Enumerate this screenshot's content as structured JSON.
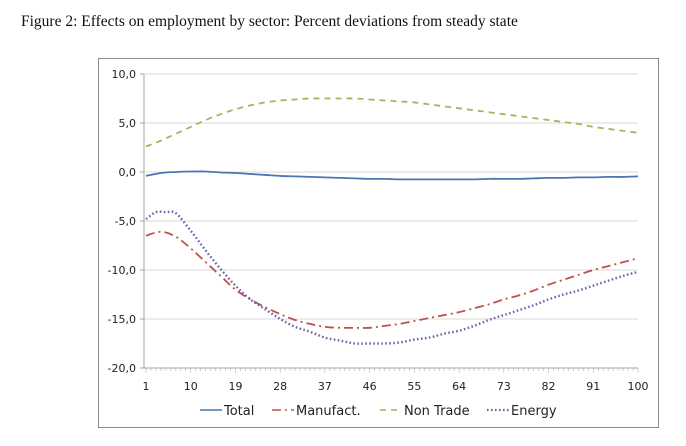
{
  "figure": {
    "title": "Figure 2: Effects on employment by sector: Percent deviations from steady state"
  },
  "chart_data": {
    "type": "line",
    "title": "Figure 2: Effects on employment by sector: Percent deviations from steady state",
    "xlabel": "",
    "ylabel": "",
    "xlim": [
      1,
      100
    ],
    "ylim": [
      -20,
      10
    ],
    "x_ticks": [
      1,
      10,
      19,
      28,
      37,
      46,
      55,
      64,
      73,
      82,
      91,
      100
    ],
    "x_tick_labels": [
      "1",
      "10",
      "19",
      "28",
      "37",
      "46",
      "55",
      "64",
      "73",
      "82",
      "91",
      "100"
    ],
    "y_ticks": [
      10,
      5,
      0,
      -5,
      -10,
      -15,
      -20
    ],
    "y_tick_labels": [
      "10,0",
      "5,0",
      "0,0",
      "-5,0",
      "-10,0",
      "-15,0",
      "-20,0"
    ],
    "grid": true,
    "legend_position": "bottom",
    "series": [
      {
        "name": "Total",
        "color": "#4a76b3",
        "style": "solid",
        "x": [
          1,
          4,
          7,
          10,
          13,
          16,
          19,
          22,
          25,
          28,
          31,
          34,
          37,
          40,
          43,
          46,
          49,
          52,
          55,
          58,
          61,
          64,
          67,
          70,
          73,
          76,
          79,
          82,
          85,
          88,
          91,
          94,
          97,
          100
        ],
        "values": [
          -0.4,
          -0.1,
          0.0,
          0.05,
          0.05,
          -0.05,
          -0.1,
          -0.2,
          -0.3,
          -0.4,
          -0.45,
          -0.5,
          -0.55,
          -0.6,
          -0.65,
          -0.7,
          -0.7,
          -0.75,
          -0.75,
          -0.75,
          -0.75,
          -0.75,
          -0.75,
          -0.7,
          -0.7,
          -0.7,
          -0.65,
          -0.6,
          -0.6,
          -0.55,
          -0.55,
          -0.5,
          -0.5,
          -0.45
        ]
      },
      {
        "name": "Manufact.",
        "color": "#c0504d",
        "style": "dash-dot",
        "x": [
          1,
          4,
          7,
          10,
          13,
          16,
          19,
          22,
          25,
          28,
          31,
          34,
          37,
          40,
          43,
          46,
          49,
          52,
          55,
          58,
          61,
          64,
          67,
          70,
          73,
          76,
          79,
          82,
          85,
          88,
          91,
          94,
          97,
          100
        ],
        "values": [
          -6.5,
          -6.1,
          -6.6,
          -7.8,
          -9.2,
          -10.6,
          -12.0,
          -13.0,
          -13.8,
          -14.5,
          -15.1,
          -15.5,
          -15.8,
          -15.9,
          -15.9,
          -15.9,
          -15.7,
          -15.5,
          -15.2,
          -14.9,
          -14.6,
          -14.3,
          -13.9,
          -13.5,
          -13.0,
          -12.6,
          -12.1,
          -11.5,
          -11.0,
          -10.5,
          -10.0,
          -9.6,
          -9.2,
          -8.8
        ]
      },
      {
        "name": "Non Trade",
        "color": "#9bbb59",
        "style": "dashed",
        "x": [
          1,
          4,
          7,
          10,
          13,
          16,
          19,
          22,
          25,
          28,
          31,
          34,
          37,
          40,
          43,
          46,
          49,
          52,
          55,
          58,
          61,
          64,
          67,
          70,
          73,
          76,
          79,
          82,
          85,
          88,
          91,
          94,
          97,
          100
        ],
        "values": [
          2.6,
          3.2,
          3.9,
          4.6,
          5.3,
          5.9,
          6.4,
          6.8,
          7.1,
          7.3,
          7.4,
          7.5,
          7.5,
          7.5,
          7.5,
          7.4,
          7.3,
          7.2,
          7.1,
          6.9,
          6.7,
          6.5,
          6.3,
          6.1,
          5.9,
          5.7,
          5.5,
          5.3,
          5.1,
          4.9,
          4.6,
          4.4,
          4.2,
          4.0
        ]
      },
      {
        "name": "Energy",
        "color": "#7060a8",
        "style": "dotted",
        "x": [
          1,
          3,
          5,
          7,
          10,
          13,
          16,
          19,
          22,
          25,
          28,
          31,
          34,
          37,
          40,
          43,
          46,
          49,
          52,
          55,
          58,
          61,
          64,
          67,
          70,
          73,
          76,
          79,
          82,
          85,
          88,
          91,
          94,
          97,
          100
        ],
        "values": [
          -4.8,
          -4.1,
          -4.1,
          -4.2,
          -6.0,
          -8.0,
          -9.9,
          -11.6,
          -13.0,
          -14.0,
          -15.0,
          -15.8,
          -16.3,
          -16.9,
          -17.2,
          -17.5,
          -17.5,
          -17.5,
          -17.4,
          -17.1,
          -16.9,
          -16.5,
          -16.2,
          -15.7,
          -15.1,
          -14.6,
          -14.1,
          -13.6,
          -13.0,
          -12.5,
          -12.1,
          -11.6,
          -11.1,
          -10.6,
          -10.2
        ]
      }
    ]
  }
}
